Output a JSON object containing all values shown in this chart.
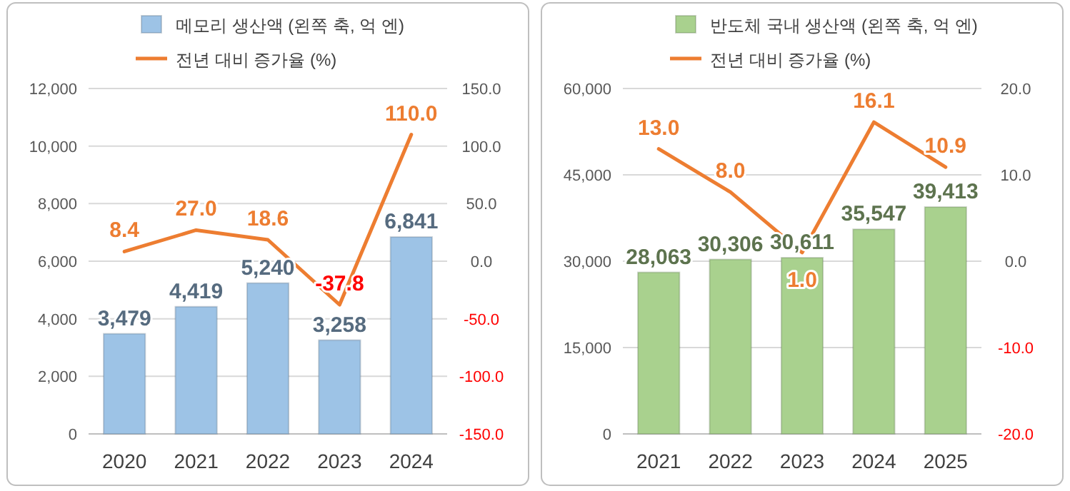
{
  "chart_data": [
    {
      "type": "bar",
      "categories": [
        "2020",
        "2021",
        "2022",
        "2023",
        "2024"
      ],
      "series": [
        {
          "name": "메모리 생산액 (왼쪽 축, 억 엔)",
          "color": "#9dc3e6",
          "values": [
            3479,
            4419,
            5240,
            3258,
            6841
          ],
          "value_labels": [
            "3,479",
            "4,419",
            "5,240",
            "3,258",
            "6,841"
          ]
        },
        {
          "name": "전년 대비 증가율 (%)",
          "type": "line",
          "axis": "y2",
          "color": "#ed7d31",
          "values": [
            8.4,
            27.0,
            18.6,
            -37.8,
            110.0
          ],
          "value_labels": [
            "8.4",
            "27.0",
            "18.6",
            "-37.8",
            "110.0"
          ]
        }
      ],
      "ylim": [
        0,
        12000
      ],
      "yticks": [
        0,
        {
          "value": 2000,
          "label": "2,000"
        },
        {
          "value": 4000,
          "label": "4,000"
        },
        {
          "value": 6000,
          "label": "6,000"
        },
        {
          "value": 8000,
          "label": "8,000"
        },
        {
          "value": 10000,
          "label": "10,000"
        },
        {
          "value": 12000,
          "label": "12,000"
        }
      ],
      "y2lim": [
        -150,
        150
      ],
      "y2ticks": [
        {
          "value": -150,
          "label": "-150.0"
        },
        {
          "value": -100,
          "label": "-100.0"
        },
        {
          "value": -50,
          "label": "-50.0"
        },
        {
          "value": 0,
          "label": "0.0"
        },
        {
          "value": 50,
          "label": "50.0"
        },
        {
          "value": 100,
          "label": "100.0"
        },
        {
          "value": 150,
          "label": "150.0"
        }
      ],
      "grid": "y",
      "legend": "top",
      "marker": "none",
      "line_style": "solid"
    },
    {
      "type": "bar",
      "categories": [
        "2021",
        "2022",
        "2023",
        "2024",
        "2025"
      ],
      "series": [
        {
          "name": "반도체 국내 생산액 (왼쪽 축, 억 엔)",
          "color": "#a9d18e",
          "values": [
            28063,
            30306,
            30611,
            35547,
            39413
          ],
          "value_labels": [
            "28,063",
            "30,306",
            "30,611",
            "35,547",
            "39,413"
          ]
        },
        {
          "name": "전년 대비 증가율 (%)",
          "type": "line",
          "axis": "y2",
          "color": "#ed7d31",
          "values": [
            13.0,
            8.0,
            1.0,
            16.1,
            10.9
          ],
          "value_labels": [
            "13.0",
            "8.0",
            "1.0",
            "16.1",
            "10.9"
          ]
        }
      ],
      "ylim": [
        0,
        60000
      ],
      "yticks": [
        0,
        {
          "value": 15000,
          "label": "15,000"
        },
        {
          "value": 30000,
          "label": "30,000"
        },
        {
          "value": 45000,
          "label": "45,000"
        },
        {
          "value": 60000,
          "label": "60,000"
        }
      ],
      "y2lim": [
        -20,
        20
      ],
      "y2ticks": [
        {
          "value": -20,
          "label": "-20.0"
        },
        {
          "value": -10,
          "label": "-10.0"
        },
        {
          "value": 0,
          "label": "0.0"
        },
        {
          "value": 10,
          "label": "10.0"
        },
        {
          "value": 20,
          "label": "20.0"
        }
      ],
      "grid": "y",
      "legend": "top",
      "marker": "none",
      "line_style": "solid"
    }
  ]
}
